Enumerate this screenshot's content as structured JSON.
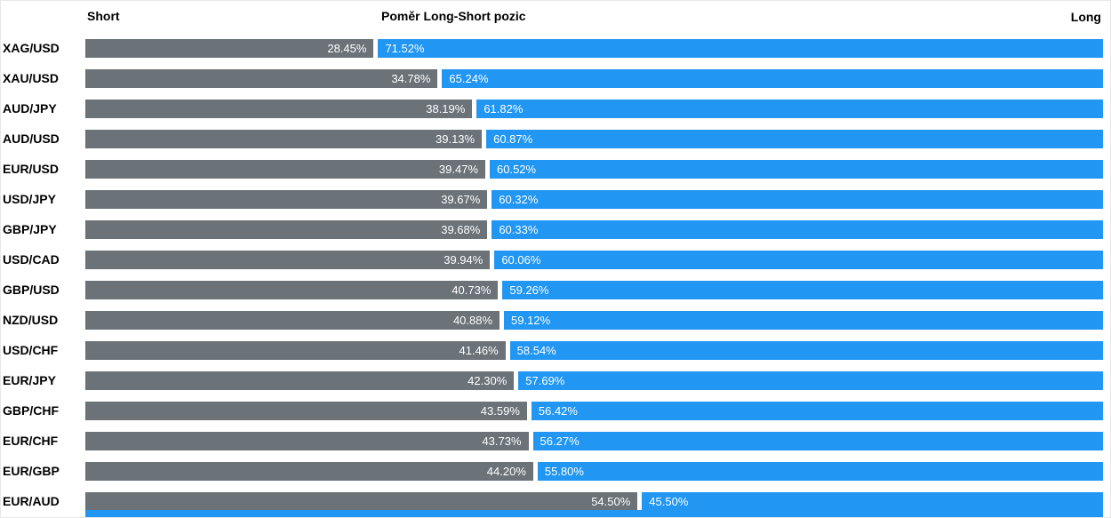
{
  "header": {
    "short_label": "Short",
    "title": "Poměr Long-Short pozic",
    "long_label": "Long"
  },
  "colors": {
    "short_bar": "#6b7278",
    "long_bar": "#2196f3",
    "bar_text": "#ffffff",
    "label_text": "#000000",
    "background": "#ffffff"
  },
  "chart_data": {
    "type": "bar",
    "orientation": "horizontal-stacked",
    "title": "Poměr Long-Short pozic",
    "xlabel": "",
    "ylabel": "",
    "xlim": [
      0,
      100
    ],
    "grid": false,
    "legend_position": "top-as-headers",
    "value_format": "0.00%",
    "categories": [
      "XAG/USD",
      "XAU/USD",
      "AUD/JPY",
      "AUD/USD",
      "EUR/USD",
      "USD/JPY",
      "GBP/JPY",
      "USD/CAD",
      "GBP/USD",
      "NZD/USD",
      "USD/CHF",
      "EUR/JPY",
      "GBP/CHF",
      "EUR/CHF",
      "EUR/GBP",
      "EUR/AUD"
    ],
    "series": [
      {
        "name": "Short",
        "values": [
          28.45,
          34.78,
          38.19,
          39.13,
          39.47,
          39.67,
          39.68,
          39.94,
          40.73,
          40.88,
          41.46,
          42.3,
          43.59,
          43.73,
          44.2,
          54.5
        ]
      },
      {
        "name": "Long",
        "values": [
          71.52,
          65.24,
          61.82,
          60.87,
          60.52,
          60.32,
          60.33,
          60.06,
          59.26,
          59.12,
          58.54,
          57.69,
          56.42,
          56.27,
          55.8,
          45.5
        ]
      }
    ],
    "partial_row_at_bottom": true
  }
}
